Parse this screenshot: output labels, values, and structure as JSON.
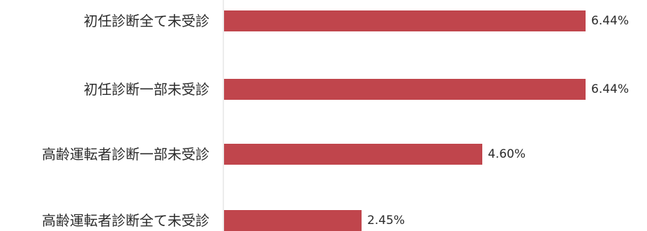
{
  "chart_data": {
    "type": "bar",
    "orientation": "horizontal",
    "categories": [
      "初任診断全て未受診",
      "初任診断一部未受診",
      "高齢運転者診断一部未受診",
      "高齢運転者診断全て未受診"
    ],
    "values": [
      6.44,
      6.44,
      4.6,
      2.45
    ],
    "value_labels": [
      "6.44%",
      "6.44%",
      "4.60%",
      "2.45%"
    ],
    "unit": "%",
    "xlim": [
      0,
      6.44
    ],
    "grid": false,
    "colors": {
      "bar": "#c0454c",
      "axis": "#d9d9d9",
      "text": "#2b2b2b"
    }
  }
}
